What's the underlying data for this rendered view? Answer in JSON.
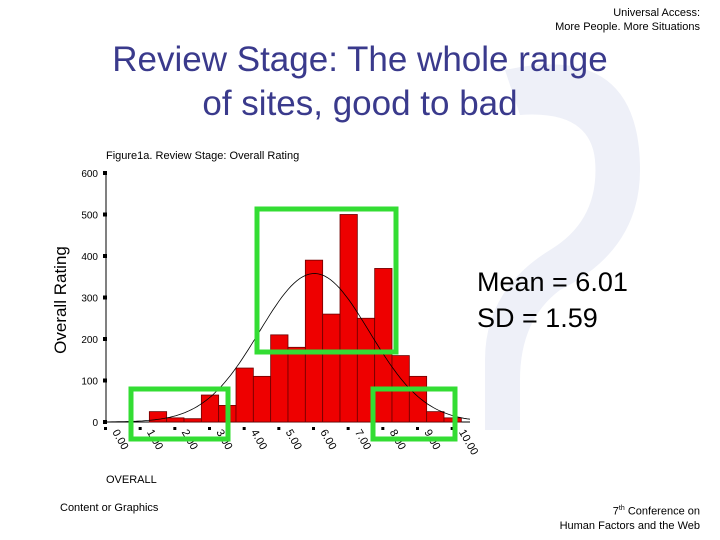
{
  "header": {
    "line1": "Universal Access:",
    "line2": "More People. More Situations"
  },
  "slide_title": {
    "line1": "Review Stage: The whole range",
    "line2": "of sites, good to bad"
  },
  "stats": {
    "mean": "Mean = 6.01",
    "sd": "SD = 1.59"
  },
  "footer": {
    "left": "Content or Graphics",
    "right_sup": "th",
    "right_num": "7",
    "right_line1_rest": "Conference on",
    "right_line2": "Human Factors and the Web"
  },
  "colors": {
    "bar_fill": "#ee0000",
    "highlight_box": "#33dd33",
    "title_text": "#3a3a8c",
    "watermark": "#eef0f8"
  },
  "chart_data": {
    "type": "bar",
    "title": "Figure1a. Review Stage: Overall Rating",
    "ylabel": "Overall Rating",
    "xlabel": "OVERALL",
    "ylim": [
      0,
      600
    ],
    "yticks": [
      0,
      100,
      200,
      300,
      400,
      500,
      600
    ],
    "xticks": [
      "0.00",
      "1.00",
      "2.00",
      "3.00",
      "4.00",
      "5.00",
      "6.00",
      "7.00",
      "8.00",
      "9.00",
      "10.00"
    ],
    "xlim": [
      0,
      10.5
    ],
    "bin_width": 0.5,
    "bins": [
      {
        "x": 1.5,
        "value": 25
      },
      {
        "x": 2.0,
        "value": 10
      },
      {
        "x": 2.5,
        "value": 8
      },
      {
        "x": 3.0,
        "value": 65
      },
      {
        "x": 3.5,
        "value": 40
      },
      {
        "x": 4.0,
        "value": 130
      },
      {
        "x": 4.5,
        "value": 110
      },
      {
        "x": 5.0,
        "value": 210
      },
      {
        "x": 5.5,
        "value": 180
      },
      {
        "x": 6.0,
        "value": 390
      },
      {
        "x": 6.5,
        "value": 260
      },
      {
        "x": 7.0,
        "value": 500
      },
      {
        "x": 7.5,
        "value": 250
      },
      {
        "x": 8.0,
        "value": 370
      },
      {
        "x": 8.5,
        "value": 160
      },
      {
        "x": 9.0,
        "value": 110
      },
      {
        "x": 9.5,
        "value": 25
      },
      {
        "x": 10.0,
        "value": 10
      }
    ],
    "normal_curve": {
      "mean": 6.01,
      "sd": 1.59
    }
  }
}
